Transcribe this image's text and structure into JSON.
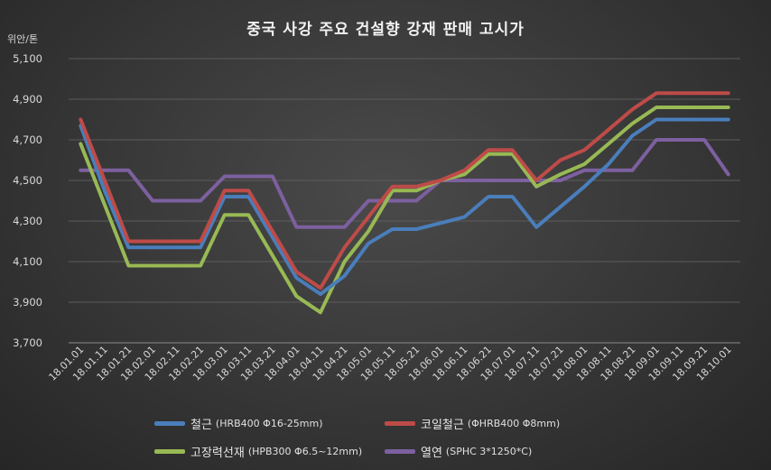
{
  "chart_data": {
    "type": "line",
    "title": "중국 사강 주요 건설향 강재 판매 고시가",
    "ylabel": "위안/톤",
    "ylim": [
      3700,
      5100
    ],
    "yticks": [
      "3,700",
      "3,900",
      "4,100",
      "4,300",
      "4,500",
      "4,700",
      "4,900",
      "5,100"
    ],
    "ytick_values": [
      3700,
      3900,
      4100,
      4300,
      4500,
      4700,
      4900,
      5100
    ],
    "categories": [
      "18.01.01",
      "18.01.11",
      "18.01.21",
      "18.02.01",
      "18.02.11",
      "18.02.21",
      "18.03.01",
      "18.03.11",
      "18.03.21",
      "18.04.01",
      "18.04.11",
      "18.04.21",
      "18.05.01",
      "18.05.11",
      "18.05.21",
      "18.06.01",
      "18.06.11",
      "18.06.21",
      "18.07.01",
      "18.07.11",
      "18.07.21",
      "18.08.01",
      "18.08.11",
      "18.08.21",
      "18.09.01",
      "18.09.11",
      "18.09.21",
      "18.10.01"
    ],
    "grid": true,
    "legend_position": "bottom",
    "series": [
      {
        "name": "철근",
        "spec": "(HRB400  Φ16-25mm)",
        "color": "#4a7ebb",
        "values": [
          4770,
          4450,
          4170,
          4170,
          4170,
          4170,
          4420,
          4420,
          4220,
          4020,
          3940,
          4030,
          4190,
          4260,
          4260,
          4290,
          4320,
          4420,
          4420,
          4270,
          4370,
          4470,
          4580,
          4720,
          4800,
          4800,
          4800,
          4800
        ]
      },
      {
        "name": "코일철근",
        "spec": "(ΦHRB400  Φ8mm)",
        "color": "#be4b48",
        "values": [
          4800,
          4500,
          4200,
          4200,
          4200,
          4200,
          4450,
          4450,
          4250,
          4050,
          3970,
          4170,
          4320,
          4470,
          4470,
          4500,
          4550,
          4650,
          4650,
          4500,
          4600,
          4650,
          4750,
          4850,
          4930,
          4930,
          4930,
          4930
        ]
      },
      {
        "name": "고장력선재",
        "spec": "(HPB300  Φ6.5~12mm)",
        "color": "#98b954",
        "values": [
          4680,
          4380,
          4080,
          4080,
          4080,
          4080,
          4330,
          4330,
          4130,
          3930,
          3850,
          4100,
          4250,
          4450,
          4450,
          4500,
          4530,
          4630,
          4630,
          4470,
          4530,
          4580,
          4680,
          4780,
          4860,
          4860,
          4860,
          4860
        ]
      },
      {
        "name": "열연",
        "spec": "(SPHC 3*1250*C)",
        "color": "#7d60a0",
        "values": [
          4550,
          4550,
          4550,
          4400,
          4400,
          4400,
          4520,
          4520,
          4520,
          4270,
          4270,
          4270,
          4400,
          4400,
          4400,
          4500,
          4500,
          4500,
          4500,
          4500,
          4500,
          4550,
          4550,
          4550,
          4700,
          4700,
          4700,
          4530
        ]
      }
    ]
  }
}
